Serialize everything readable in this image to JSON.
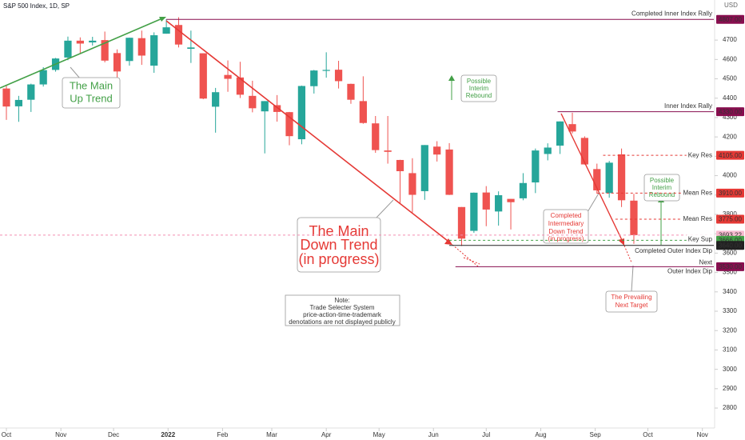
{
  "chart_data": {
    "type": "candlestick",
    "title": "S&P 500 Index, 1D, SP",
    "y_unit": "USD",
    "candles": {
      "x": [
        0,
        1,
        2,
        3,
        4,
        5,
        6,
        7,
        8,
        9,
        10,
        11,
        12,
        13,
        14,
        15,
        16,
        17,
        18,
        19,
        20,
        21,
        22,
        23,
        24,
        25,
        26,
        27,
        28,
        29,
        30,
        31,
        32,
        33,
        34,
        35,
        36,
        37,
        38,
        39,
        40,
        41,
        42,
        43,
        44,
        45,
        46,
        47,
        48,
        49,
        50,
        51
      ],
      "open": [
        4450,
        4358,
        4392,
        4471,
        4546,
        4610,
        4697,
        4688,
        4700,
        4633,
        4592,
        4710,
        4568,
        4733,
        4778,
        4655,
        4632,
        4356,
        4520,
        4507,
        4412,
        4332,
        4364,
        4328,
        4188,
        4462,
        4541,
        4547,
        4474,
        4385,
        4270,
        4130,
        4081,
        4013,
        3920,
        4150,
        4135,
        3838,
        3715,
        3913,
        3815,
        3880,
        3883,
        3965,
        4112,
        4155,
        4266,
        4195,
        4034,
        3910,
        4110,
        3871
      ],
      "high": [
        4466,
        4412,
        4475,
        4560,
        4608,
        4718,
        4714,
        4717,
        4744,
        4652,
        4713,
        4749,
        4740,
        4808,
        4818,
        4749,
        4632,
        4453,
        4595,
        4588,
        4490,
        4385,
        4416,
        4329,
        4465,
        4546,
        4637,
        4593,
        4475,
        4513,
        4308,
        4308,
        4082,
        4090,
        4158,
        4178,
        4168,
        3838,
        3913,
        3946,
        3919,
        3880,
        4013,
        4140,
        4167,
        4280,
        4325,
        4203,
        4062,
        4076,
        4140,
        3906
      ],
      "low": [
        4288,
        4278,
        4329,
        4460,
        4537,
        4596,
        4630,
        4672,
        4585,
        4495,
        4568,
        4572,
        4531,
        4733,
        4662,
        4582,
        4395,
        4222,
        4433,
        4401,
        4327,
        4115,
        4279,
        4157,
        4162,
        4424,
        4506,
        4450,
        4371,
        4268,
        4118,
        4062,
        3858,
        3810,
        3875,
        4073,
        3900,
        3637,
        3705,
        3739,
        3742,
        3722,
        3873,
        3910,
        4079,
        4112,
        4218,
        4057,
        3907,
        3886,
        3838,
        3648
      ],
      "close": [
        4357,
        4391,
        4471,
        4545,
        4605,
        4697,
        4682,
        4697,
        4594,
        4538,
        4712,
        4620,
        4725,
        4766,
        4677,
        4662,
        4398,
        4431,
        4500,
        4418,
        4348,
        4385,
        4329,
        4204,
        4463,
        4543,
        4546,
        4488,
        4392,
        4272,
        4132,
        4123,
        4023,
        3901,
        4158,
        4109,
        3901,
        3675,
        3912,
        3825,
        3899,
        3863,
        3962,
        4130,
        4145,
        4280,
        4228,
        4058,
        3924,
        4067,
        3873,
        3693
      ],
      "up_color": "#26a69a",
      "down_color": "#ef5350"
    },
    "xlim": [
      -0.52,
      57.5
    ],
    "xticks": [
      {
        "value": 0,
        "label": "Oct"
      },
      {
        "value": 4.43,
        "label": "Nov"
      },
      {
        "value": 8.71,
        "label": "Dec"
      },
      {
        "value": 13.14,
        "label": "2022"
      },
      {
        "value": 17.57,
        "label": "Feb"
      },
      {
        "value": 21.57,
        "label": "Mar"
      },
      {
        "value": 26,
        "label": "Apr"
      },
      {
        "value": 30.29,
        "label": "May"
      },
      {
        "value": 34.71,
        "label": "Jun"
      },
      {
        "value": 39,
        "label": "Jul"
      },
      {
        "value": 43.43,
        "label": "Aug"
      },
      {
        "value": 47.86,
        "label": "Sep"
      },
      {
        "value": 52.14,
        "label": "Oct"
      },
      {
        "value": 56.57,
        "label": "Nov"
      }
    ],
    "ylim": [
      2697,
      4907
    ],
    "yticks": [
      2800,
      2900,
      3000,
      3100,
      3200,
      3300,
      3400,
      3500,
      3600,
      3700,
      3800,
      3900,
      4000,
      4100,
      4200,
      4300,
      4400,
      4500,
      4600,
      4700
    ],
    "levels": [
      {
        "value": 4807,
        "value_label": "4807.00",
        "text": [
          "Completed Inner Index Rally"
        ],
        "color": "#880e4f",
        "dashed": false
      },
      {
        "value": 4330,
        "value_label": "4330.00",
        "text": [
          "Inner Index Rally"
        ],
        "color": "#880e4f",
        "dashed": false
      },
      {
        "value": 4105,
        "value_label": "4105.00",
        "text": [
          "Key Res"
        ],
        "color": "#e53935",
        "dashed": true
      },
      {
        "value": 3910,
        "value_label": "3910.00",
        "text": [
          "Mean Res"
        ],
        "color": "#e53935",
        "dashed": true
      },
      {
        "value": 3775,
        "value_label": "3775.00",
        "text": [
          "Mean Res"
        ],
        "color": "#e53935",
        "dashed": true
      },
      {
        "value": 3693.22,
        "value_label": "3693.22",
        "text": [],
        "color": "#f48fb1",
        "dashed": true
      },
      {
        "value": 3666,
        "value_label": "3666.00",
        "text": [
          "Key Sup"
        ],
        "color": "#43a047",
        "dashed": true
      },
      {
        "value": 3640,
        "value_label": "3640.00",
        "text": [
          "Completed Outer Index Dip"
        ],
        "color": "#212121",
        "dashed": false
      },
      {
        "value": 3530,
        "value_label": "3530.00",
        "text": [
          "Next",
          "Outer Index Dip"
        ],
        "color": "#880e4f",
        "dashed": false
      }
    ],
    "annotations": [
      {
        "lines": [
          "The Main",
          "Up Trend"
        ]
      },
      {
        "lines": [
          "The Main",
          "Down Trend",
          "(in progress)"
        ]
      },
      {
        "lines": [
          "Possible",
          "Interim",
          "Rebound"
        ]
      },
      {
        "lines": [
          "Possible",
          "Interim",
          "Rebound"
        ]
      },
      {
        "lines": [
          "Completed",
          "Intermediary",
          "Down Trend",
          "(in progress)"
        ]
      },
      {
        "lines": [
          "The Prevailing",
          "Next Target"
        ]
      },
      {
        "lines": [
          "Note:",
          "Trade Selecter System",
          "price-action-time-trademark",
          "denotations are not displayed publicly"
        ]
      }
    ]
  }
}
